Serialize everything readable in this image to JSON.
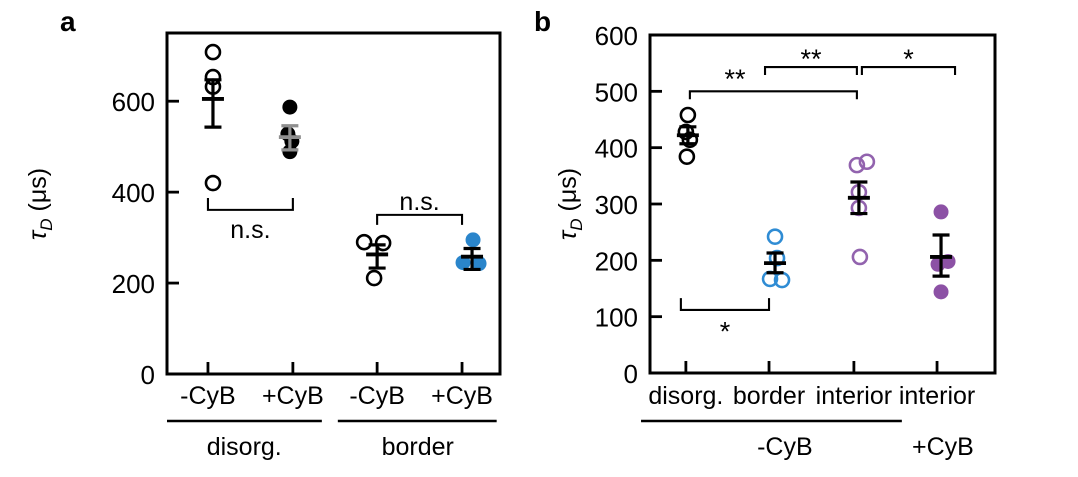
{
  "figure": {
    "background": "#ffffff"
  },
  "chart_data": [
    {
      "type": "scatter",
      "panel_label": "a",
      "ylabel": {
        "tau": "τ",
        "sub": "D",
        "unit": " (μs)"
      },
      "ylim": [
        0,
        750
      ],
      "yticks": [
        0,
        200,
        400,
        600
      ],
      "categories": [
        "-CyB",
        "+CyB",
        "-CyB",
        "+CyB"
      ],
      "groups": [
        {
          "label": "disorg.",
          "underline": true
        },
        {
          "label": "border",
          "underline": true
        }
      ],
      "series": [
        {
          "name": "disorg. -CyB",
          "marker": "open",
          "color": "#000000",
          "err_color": "#000000",
          "values": [
            708,
            653,
            632,
            420
          ],
          "mean": 605,
          "err_lo": 543,
          "err_hi": 647
        },
        {
          "name": "disorg. +CyB",
          "marker": "filled",
          "color": "#000000",
          "err_color": "#8f8f8f",
          "values": [
            587,
            528,
            512,
            489
          ],
          "mean": 521,
          "err_lo": 493,
          "err_hi": 546
        },
        {
          "name": "border -CyB",
          "marker": "open",
          "color": "#000000",
          "err_color": "#000000",
          "values": [
            290,
            288,
            211
          ],
          "mean": 263,
          "err_lo": 233,
          "err_hi": 284
        },
        {
          "name": "border +CyB",
          "marker": "filled",
          "color": "#2a85cb",
          "err_color": "#000000",
          "values": [
            295,
            245,
            243
          ],
          "mean": 258,
          "err_lo": 230,
          "err_hi": 276
        }
      ],
      "annotations": [
        {
          "label": "n.s.",
          "from": 0,
          "to": 1,
          "bar": 361,
          "tip": 387,
          "label_value": 317
        },
        {
          "label": "n.s.",
          "from": 2,
          "to": 3,
          "bar": 350,
          "tip": 328,
          "label_value": 378
        }
      ]
    },
    {
      "type": "scatter",
      "panel_label": "b",
      "ylabel": {
        "tau": "τ",
        "sub": "D",
        "unit": " (μs)"
      },
      "ylim": [
        0,
        600
      ],
      "yticks": [
        0,
        100,
        200,
        300,
        400,
        500,
        600
      ],
      "categories": [
        "disorg.",
        "border",
        "interior",
        "interior"
      ],
      "groups": [
        {
          "label": "-CyB",
          "underline": true
        },
        {
          "label": "+CyB",
          "underline": false
        }
      ],
      "series": [
        {
          "name": "disorg. -CyB",
          "marker": "open",
          "color": "#000000",
          "err_color": "#000000",
          "values": [
            458,
            428,
            414,
            384
          ],
          "mean": 422,
          "err_lo": 407,
          "err_hi": 437
        },
        {
          "name": "border -CyB",
          "marker": "open",
          "color": "#2f8cd4",
          "err_color": "#000000",
          "values": [
            242,
            204,
            167,
            165
          ],
          "mean": 195,
          "err_lo": 178,
          "err_hi": 213
        },
        {
          "name": "interior -CyB",
          "marker": "open",
          "color": "#9263ae",
          "err_color": "#000000",
          "values": [
            375,
            369,
            321,
            293,
            206
          ],
          "mean": 311,
          "err_lo": 283,
          "err_hi": 339
        },
        {
          "name": "interior +CyB",
          "marker": "filled",
          "color": "#8c51a5",
          "err_color": "#000000",
          "values": [
            286,
            198,
            193,
            144
          ],
          "mean": 206,
          "err_lo": 172,
          "err_hi": 245
        }
      ],
      "annotations": [
        {
          "label": "**",
          "from": 0,
          "to": 2,
          "bar": 500,
          "tip": 486,
          "label_value": 536
        },
        {
          "label": "**",
          "from": 1,
          "to": 2,
          "bar": 543,
          "tip": 529,
          "label_value": 572
        },
        {
          "label": "*",
          "from": 2,
          "to": 3,
          "bar": 543,
          "tip": 529,
          "label_value": 572
        },
        {
          "label": "*",
          "from": 0,
          "to": 1,
          "bar": 112,
          "tip": 133,
          "label_value": 88
        }
      ]
    }
  ]
}
